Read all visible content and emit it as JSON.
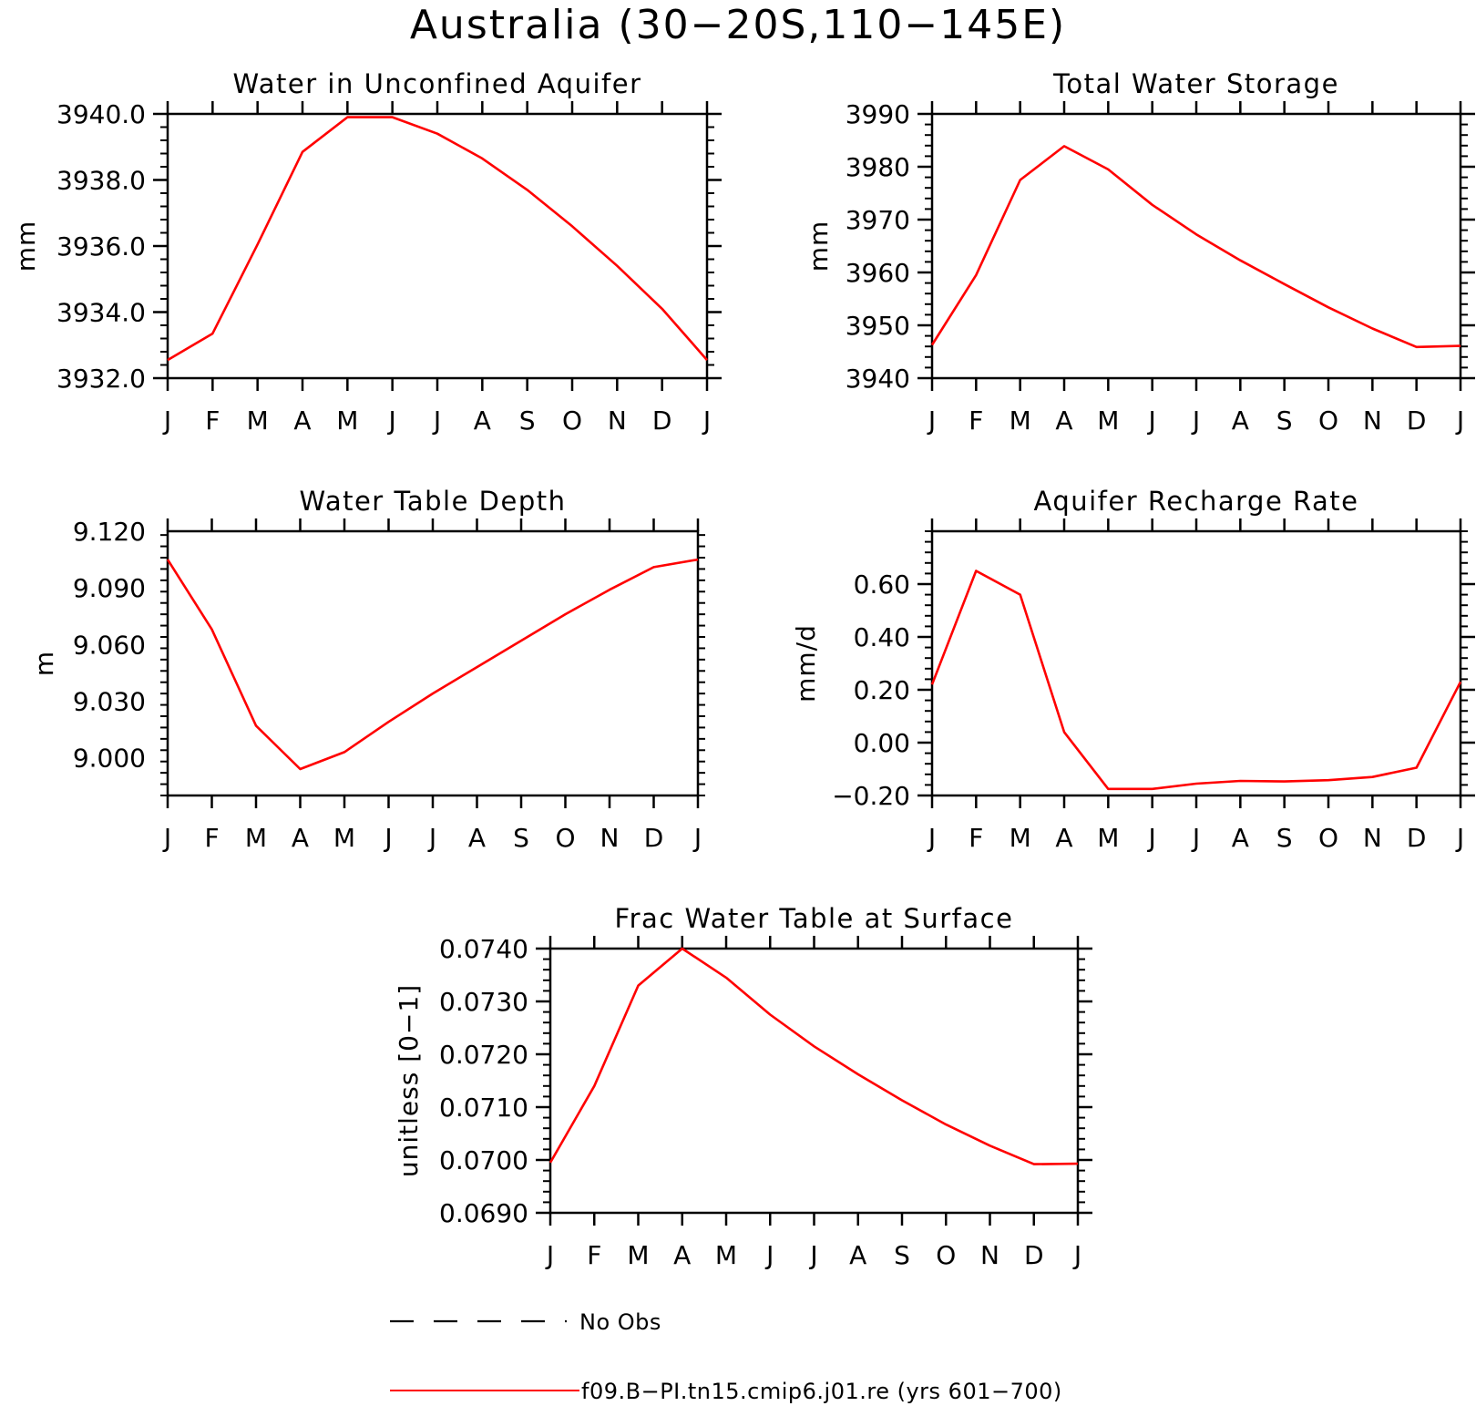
{
  "figure": {
    "title": "Australia (30−20S,110−145E)",
    "legend": [
      {
        "label": "No Obs",
        "style": "dashed",
        "color": "#000000"
      },
      {
        "label": "f09.B−PI.tn15.cmip6.j01.re (yrs 601−700)",
        "style": "solid",
        "color": "#ff0000"
      }
    ]
  },
  "chart_data": [
    {
      "type": "line",
      "title": "Water in Unconfined Aquifer",
      "ylabel": "mm",
      "xlabel": "",
      "categories": [
        "J",
        "F",
        "M",
        "A",
        "M",
        "J",
        "J",
        "A",
        "S",
        "O",
        "N",
        "D",
        "J"
      ],
      "ylim": [
        3932.0,
        3940.0
      ],
      "yticks": [
        3932.0,
        3934.0,
        3936.0,
        3938.0,
        3940.0
      ],
      "ytick_labels": [
        "3932.0",
        "3934.0",
        "3936.0",
        "3938.0",
        "3940.0"
      ],
      "series": [
        {
          "color": "#ff0000",
          "values": [
            3932.55,
            3933.35,
            3936.05,
            3938.85,
            3939.9,
            3939.9,
            3939.4,
            3938.65,
            3937.7,
            3936.6,
            3935.4,
            3934.1,
            3932.55
          ]
        }
      ]
    },
    {
      "type": "line",
      "title": "Total Water Storage",
      "ylabel": "mm",
      "xlabel": "",
      "categories": [
        "J",
        "F",
        "M",
        "A",
        "M",
        "J",
        "J",
        "A",
        "S",
        "O",
        "N",
        "D",
        "J"
      ],
      "ylim": [
        3940,
        3990
      ],
      "yticks": [
        3940,
        3950,
        3960,
        3970,
        3980,
        3990
      ],
      "ytick_labels": [
        "3940",
        "3950",
        "3960",
        "3970",
        "3980",
        "3990"
      ],
      "series": [
        {
          "color": "#ff0000",
          "values": [
            3946.3,
            3959.5,
            3977.5,
            3983.9,
            3979.5,
            3972.8,
            3967.2,
            3962.3,
            3957.8,
            3953.4,
            3949.4,
            3945.9,
            3946.1
          ]
        }
      ]
    },
    {
      "type": "line",
      "title": "Water Table Depth",
      "ylabel": "m",
      "xlabel": "",
      "categories": [
        "J",
        "F",
        "M",
        "A",
        "M",
        "J",
        "J",
        "A",
        "S",
        "O",
        "N",
        "D",
        "J"
      ],
      "ylim": [
        8.98,
        9.12
      ],
      "yticks": [
        9.0,
        9.03,
        9.06,
        9.09,
        9.12
      ],
      "ytick_labels": [
        "9.000",
        "9.030",
        "9.060",
        "9.090",
        "9.120"
      ],
      "series": [
        {
          "color": "#ff0000",
          "values": [
            9.105,
            9.068,
            9.017,
            8.994,
            9.003,
            9.019,
            9.034,
            9.048,
            9.062,
            9.076,
            9.089,
            9.101,
            9.105
          ]
        }
      ]
    },
    {
      "type": "line",
      "title": "Aquifer Recharge Rate",
      "ylabel": "mm/d",
      "xlabel": "",
      "categories": [
        "J",
        "F",
        "M",
        "A",
        "M",
        "J",
        "J",
        "A",
        "S",
        "O",
        "N",
        "D",
        "J"
      ],
      "ylim": [
        -0.2,
        0.8
      ],
      "yticks": [
        -0.2,
        0.0,
        0.2,
        0.4,
        0.6
      ],
      "ytick_labels": [
        "−0.20",
        "0.00",
        "0.20",
        "0.40",
        "0.60"
      ],
      "series": [
        {
          "color": "#ff0000",
          "values": [
            0.22,
            0.65,
            0.56,
            0.04,
            -0.175,
            -0.175,
            -0.155,
            -0.145,
            -0.147,
            -0.142,
            -0.13,
            -0.095,
            0.23
          ]
        }
      ]
    },
    {
      "type": "line",
      "title": "Frac Water Table at Surface",
      "ylabel": "unitless [0−1]",
      "xlabel": "",
      "categories": [
        "J",
        "F",
        "M",
        "A",
        "M",
        "J",
        "J",
        "A",
        "S",
        "O",
        "N",
        "D",
        "J"
      ],
      "ylim": [
        0.069,
        0.074
      ],
      "yticks": [
        0.069,
        0.07,
        0.071,
        0.072,
        0.073,
        0.074
      ],
      "ytick_labels": [
        "0.0690",
        "0.0700",
        "0.0710",
        "0.0720",
        "0.0730",
        "0.0740"
      ],
      "series": [
        {
          "color": "#ff0000",
          "values": [
            0.06995,
            0.0714,
            0.0733,
            0.074,
            0.07345,
            0.07275,
            0.07215,
            0.07162,
            0.07113,
            0.07067,
            0.07027,
            0.06992,
            0.06993
          ]
        }
      ]
    }
  ]
}
